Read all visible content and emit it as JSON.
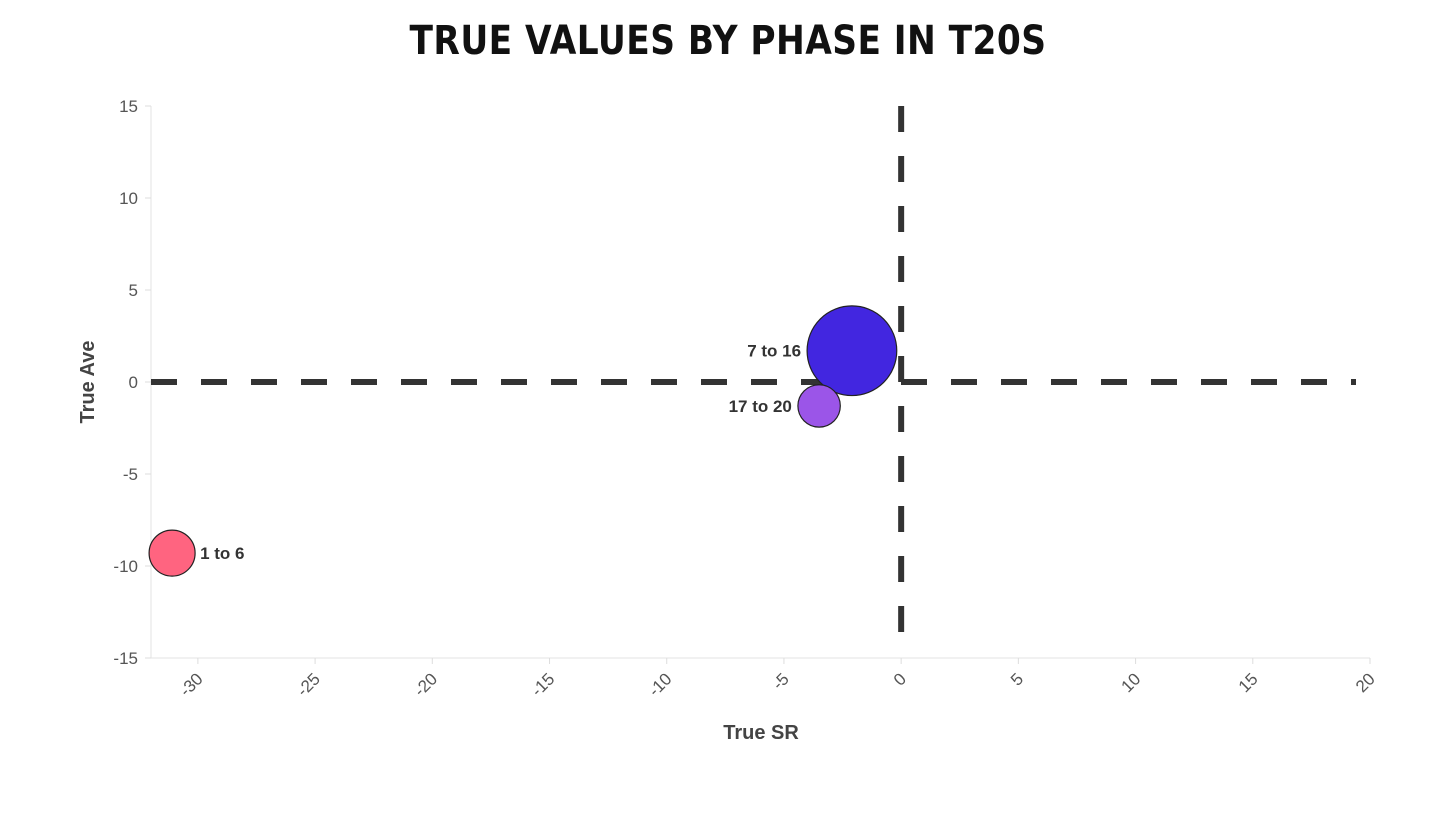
{
  "chart_data": {
    "type": "scatter",
    "title": "True Values by Phase in T20s",
    "xlabel": "True SR",
    "ylabel": "True Ave",
    "xlim": [
      -32,
      20
    ],
    "ylim": [
      -15,
      15
    ],
    "x_ticks": [
      -30,
      -25,
      -20,
      -15,
      -10,
      -5,
      0,
      5,
      10,
      15,
      20
    ],
    "y_ticks": [
      15,
      10,
      5,
      0,
      -5,
      -10,
      -15
    ],
    "reference_lines": {
      "x": 0,
      "y": 0,
      "style": "dashed"
    },
    "grid": false,
    "points": [
      {
        "label": "1 to 6",
        "x": -31.1,
        "y": -9.3,
        "size": 1.0,
        "color": "#FF6480",
        "label_side": "right"
      },
      {
        "label": "7 to 16",
        "x": -2.1,
        "y": 1.7,
        "size": 3.8,
        "color": "#4226E0",
        "label_side": "left"
      },
      {
        "label": "17 to 20",
        "x": -3.5,
        "y": -1.3,
        "size": 0.85,
        "color": "#9B55E8",
        "label_side": "left"
      }
    ]
  }
}
